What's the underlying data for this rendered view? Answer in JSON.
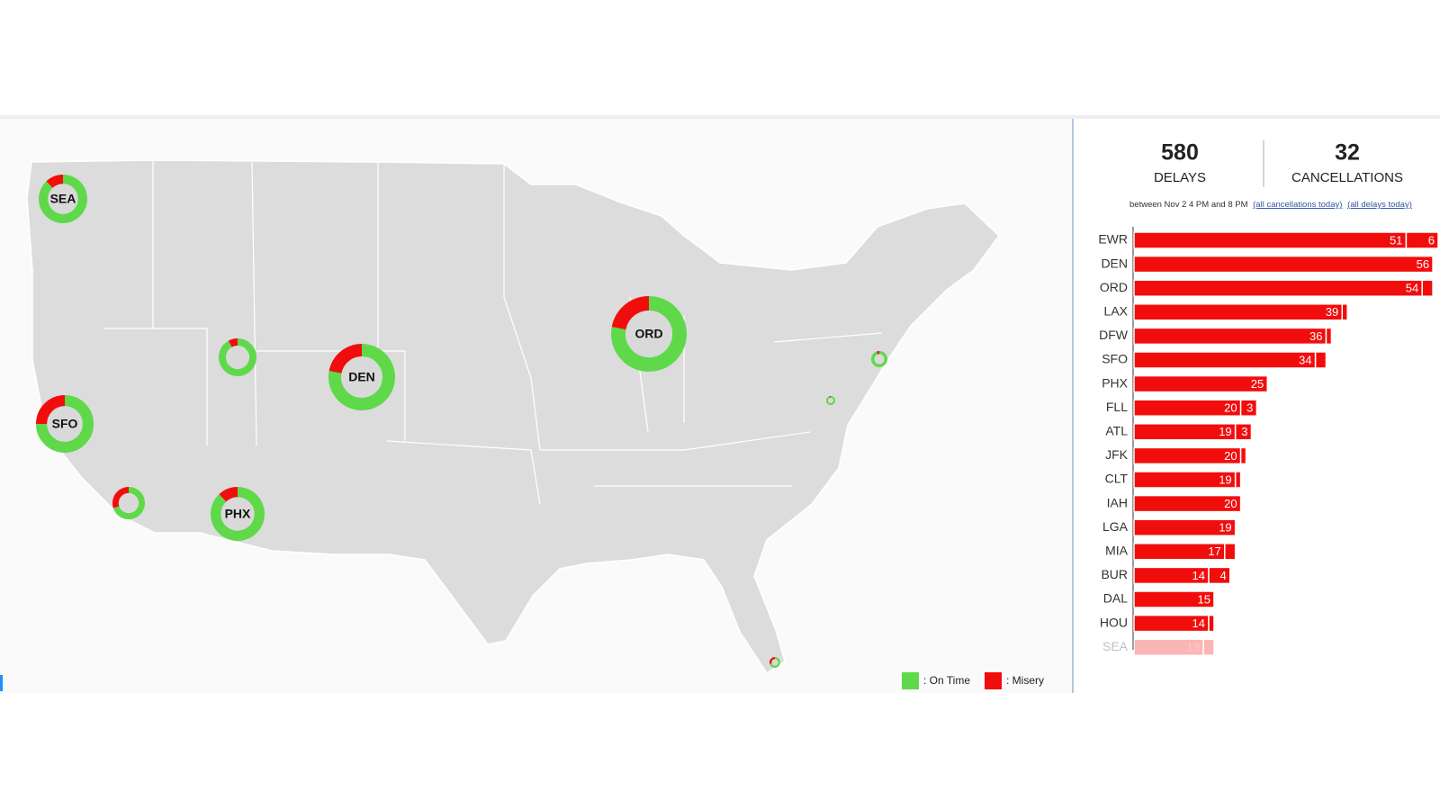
{
  "stats": {
    "delays": {
      "value": 580,
      "label": "DELAYS"
    },
    "cancellations": {
      "value": 32,
      "label": "CANCELLATIONS"
    },
    "note": "between Nov 2 4 PM and 8 PM",
    "link_cancellations": "(all cancellations today)",
    "link_delays": "(all delays today)"
  },
  "map": {
    "type": "donut-map",
    "airports": [
      {
        "label": "SEA",
        "misery": 12
      },
      {
        "label": null,
        "misery": 8
      },
      {
        "label": "DEN",
        "misery": 22
      },
      {
        "label": "ORD",
        "misery": 22
      },
      {
        "label": "SFO",
        "misery": 25
      },
      {
        "label": null,
        "misery": 30
      },
      {
        "label": "PHX",
        "misery": 12
      },
      {
        "label": null,
        "misery": 5
      },
      {
        "label": null,
        "misery": 5
      },
      {
        "label": null,
        "misery": 30
      }
    ],
    "legend": [
      {
        "name": ": On Time",
        "color": "#5fd94a"
      },
      {
        "name": ": Misery",
        "color": "#f20d0d"
      }
    ]
  },
  "chart_data": {
    "type": "stacked-barh",
    "categories": [
      "EWR",
      "DEN",
      "ORD",
      "LAX",
      "DFW",
      "SFO",
      "PHX",
      "FLL",
      "ATL",
      "JFK",
      "CLT",
      "IAH",
      "LGA",
      "MIA",
      "BUR",
      "DAL",
      "HOU",
      "SEA"
    ],
    "series": [
      {
        "name": "Delays",
        "color": "#f20d0d",
        "values": [
          51,
          56,
          54,
          39,
          36,
          34,
          25,
          20,
          19,
          20,
          19,
          20,
          19,
          17,
          14,
          15,
          14,
          13
        ],
        "value_labels": [
          "51",
          "56",
          "54",
          "39",
          "36",
          "34",
          "25",
          "20",
          "19",
          "20",
          "19",
          "20",
          "19",
          "17",
          "14",
          "15",
          "14",
          "13"
        ]
      },
      {
        "name": "Cancellations",
        "color": "#f20d0d",
        "values": [
          6,
          0,
          2,
          1,
          1,
          2,
          0,
          3,
          3,
          1,
          1,
          0,
          0,
          2,
          4,
          0,
          1,
          2
        ],
        "value_labels": [
          "6",
          null,
          null,
          null,
          null,
          null,
          null,
          "3",
          "3",
          null,
          null,
          null,
          null,
          null,
          "4",
          null,
          null,
          null
        ]
      }
    ]
  }
}
